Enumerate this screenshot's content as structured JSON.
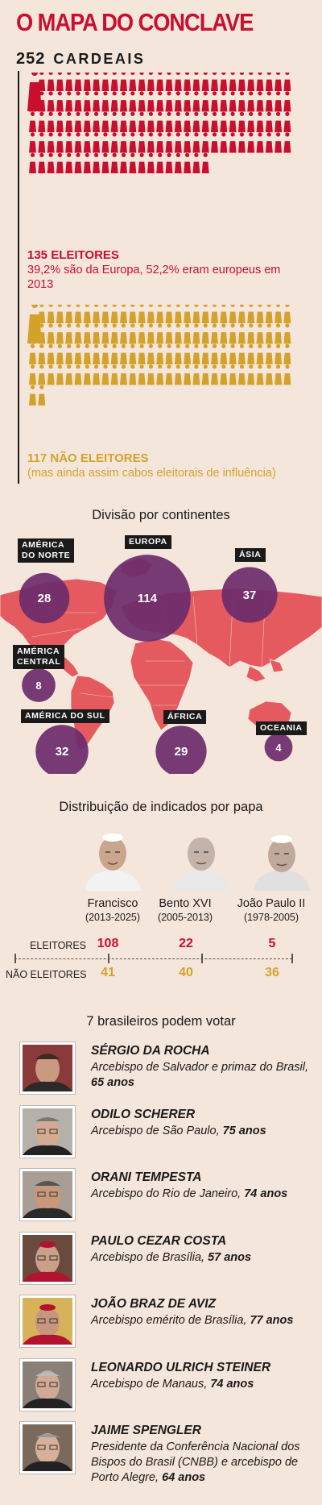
{
  "title": "O MAPA DO CONCLAVE",
  "total": {
    "number": "252",
    "label": "CARDEAIS"
  },
  "electors": {
    "heading": "135 ELEITORES",
    "subtitle": "39,2% são da Europa, 52,2% eram europeus em 2013",
    "color": "#c8102e",
    "count": 135
  },
  "non_electors": {
    "heading": "117 NÃO ELEITORES",
    "subtitle": "(mas ainda assim cabos eleitorais de influência)",
    "color": "#d4a22b",
    "count": 117
  },
  "continents": {
    "title": "Divisão por continentes",
    "map_color": "#e45a5e",
    "bubble_color": "#6b2b6b",
    "items": [
      {
        "label_lines": [
          "AMÉRICA",
          "DO NORTE"
        ],
        "value": 28
      },
      {
        "label_lines": [
          "EUROPA"
        ],
        "value": 114
      },
      {
        "label_lines": [
          "ÁSIA"
        ],
        "value": 37
      },
      {
        "label_lines": [
          "AMÉRICA",
          "CENTRAL"
        ],
        "value": 8
      },
      {
        "label_lines": [
          "AMÉRICA DO SUL"
        ],
        "value": 32
      },
      {
        "label_lines": [
          "ÁFRICA"
        ],
        "value": 29
      },
      {
        "label_lines": [
          "OCEANIA"
        ],
        "value": 4
      }
    ]
  },
  "chart_data": {
    "type": "bar",
    "title": "Distribuição de indicados por papa",
    "categories": [
      "Francisco",
      "Bento XVI",
      "João Paulo II"
    ],
    "years": [
      "(2013-2025)",
      "(2005-2013)",
      "(1978-2005)"
    ],
    "series": [
      {
        "name": "ELEITORES",
        "values": [
          108,
          22,
          5
        ],
        "color": "#c8102e"
      },
      {
        "name": "NÃO ELEITORES",
        "values": [
          41,
          40,
          36
        ],
        "color": "#d4a22b"
      }
    ]
  },
  "brazilians": {
    "title": "7 brasileiros podem votar",
    "items": [
      {
        "name": "SÉRGIO DA ROCHA",
        "desc": "Arcebispo de Salvador e primaz do Brasil,",
        "age": "65 anos"
      },
      {
        "name": "ODILO SCHERER",
        "desc": "Arcebispo de São Paulo,",
        "age": "75 anos"
      },
      {
        "name": "ORANI TEMPESTA",
        "desc": "Arcebispo do Rio de Janeiro,",
        "age": "74 anos"
      },
      {
        "name": "PAULO CEZAR COSTA",
        "desc": "Arcebispo de Brasília,",
        "age": "57 anos"
      },
      {
        "name": "JOÃO BRAZ DE AVIZ",
        "desc": "Arcebispo emérito de Brasília,",
        "age": "77 anos"
      },
      {
        "name": "LEONARDO ULRICH STEINER",
        "desc": "Arcebispo de Manaus,",
        "age": "74 anos"
      },
      {
        "name": "JAIME SPENGLER",
        "desc": "Presidente da Conferência Nacional dos Bispos do Brasil (CNBB) e arcebispo de Porto Alegre,",
        "age": "64 anos"
      }
    ]
  }
}
